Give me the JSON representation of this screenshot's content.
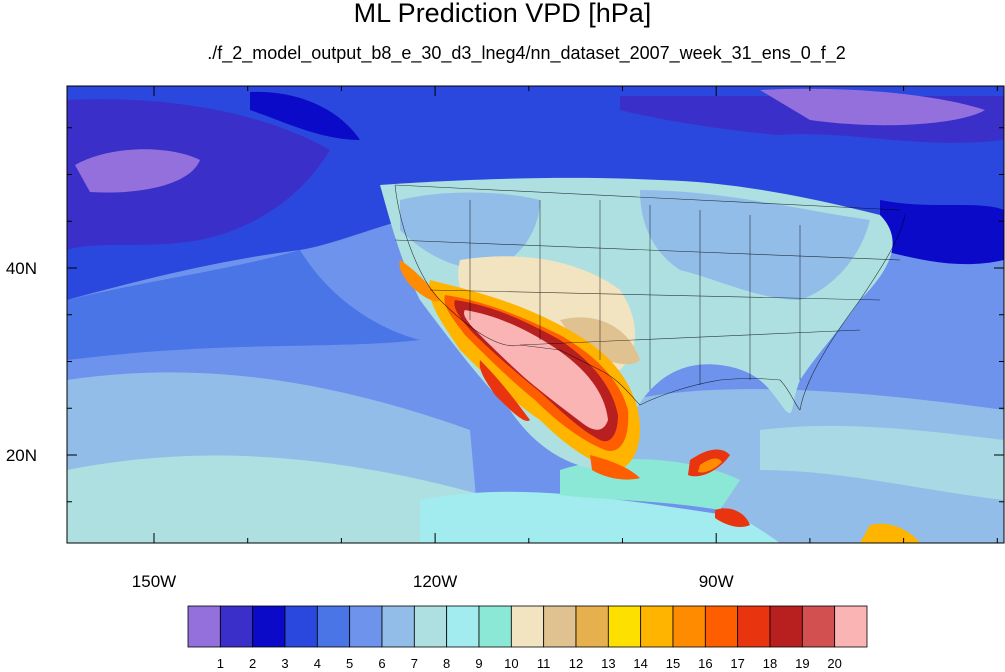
{
  "title": "ML Prediction VPD [hPa]",
  "subtitle": "./f_2_model_output_b8_e_30_d3_lneg4/nn_dataset_2007_week_31_ens_0_f_2",
  "lon_ticks": [
    {
      "label": "150W",
      "lon": -150
    },
    {
      "label": "120W",
      "lon": -120
    },
    {
      "label": "90W",
      "lon": -90
    }
  ],
  "lat_ticks": [
    {
      "label": "40N",
      "lat": 40
    },
    {
      "label": "20N",
      "lat": 20
    }
  ],
  "colorbar": {
    "colors": [
      "#9370db",
      "#3b2fc9",
      "#0a0ac8",
      "#2b48de",
      "#4a75e6",
      "#6e93ec",
      "#92bde8",
      "#aee0e2",
      "#a2ebef",
      "#8ce8d6",
      "#f2e4c0",
      "#e0c190",
      "#e6b04e",
      "#fde000",
      "#ffb400",
      "#ff8c00",
      "#ff5e00",
      "#e93410",
      "#b82020",
      "#d25050",
      "#fab4b4"
    ],
    "labels": [
      "1",
      "2",
      "3",
      "4",
      "5",
      "6",
      "7",
      "8",
      "9",
      "10",
      "11",
      "12",
      "13",
      "14",
      "15",
      "16",
      "17",
      "18",
      "19",
      "20"
    ]
  }
}
